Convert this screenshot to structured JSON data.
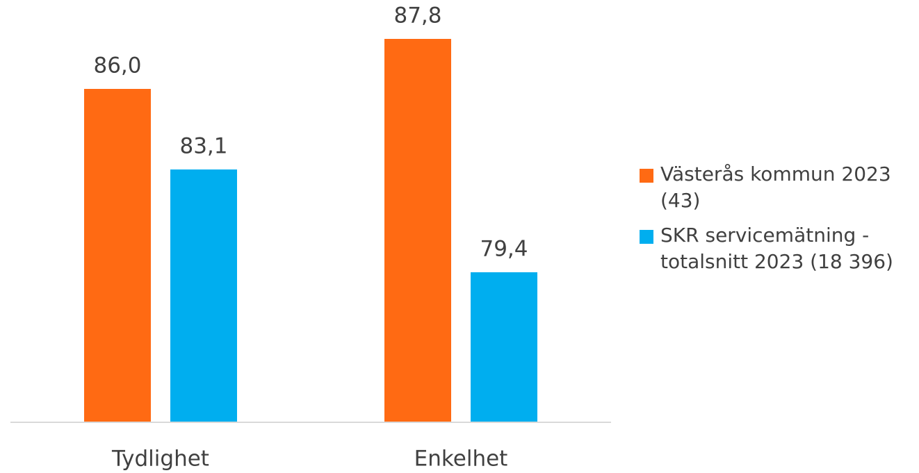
{
  "chart_data": {
    "type": "bar",
    "categories": [
      "Tydlighet",
      "Enkelhet"
    ],
    "series": [
      {
        "name": "Västerås kommun 2023 (43)",
        "color": "#ff6a13",
        "values": [
          86.0,
          87.8
        ],
        "value_labels": [
          "86,0",
          "87,8"
        ]
      },
      {
        "name": "SKR servicemätning - totalsnitt 2023 (18 396)",
        "color": "#00aeef",
        "values": [
          83.1,
          79.4
        ],
        "value_labels": [
          "83,1",
          "79,4"
        ]
      }
    ],
    "ylim": [
      74,
      89.2
    ],
    "legend": "right"
  }
}
